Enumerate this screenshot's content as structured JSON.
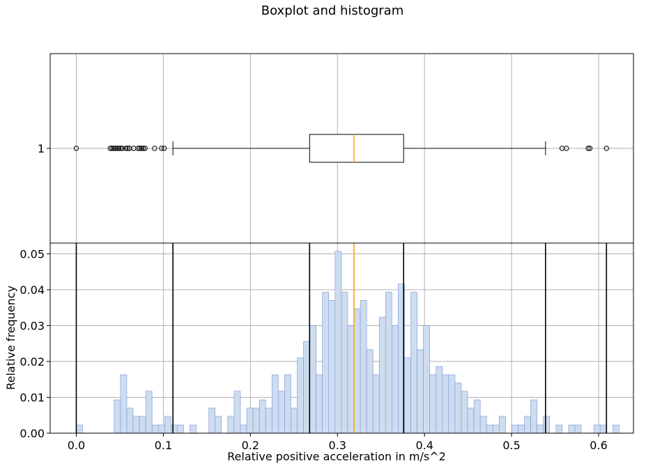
{
  "chart_data": {
    "title": "Boxplot and histogram",
    "boxplot": {
      "type": "boxplot",
      "orientation": "horizontal",
      "category_label": "1",
      "whisker_low": 0.111,
      "q1": 0.268,
      "median": 0.319,
      "q3": 0.376,
      "whisker_high": 0.539,
      "outliers": [
        0.0,
        0.039,
        0.041,
        0.043,
        0.045,
        0.047,
        0.049,
        0.051,
        0.053,
        0.057,
        0.059,
        0.061,
        0.066,
        0.071,
        0.073,
        0.075,
        0.077,
        0.079,
        0.09,
        0.098,
        0.101,
        0.558,
        0.563,
        0.588,
        0.59,
        0.609
      ],
      "grid": true
    },
    "histogram": {
      "type": "bar",
      "bin_width": 0.00725,
      "bin_start": 0.0,
      "values": [
        0.0023,
        0,
        0,
        0,
        0,
        0,
        0.0093,
        0.0163,
        0.007,
        0.0047,
        0.0047,
        0.0117,
        0.0023,
        0.0023,
        0.0047,
        0.0023,
        0.0023,
        0,
        0.0023,
        0,
        0,
        0.007,
        0.0047,
        0,
        0.0047,
        0.0117,
        0.0023,
        0.007,
        0.007,
        0.0093,
        0.007,
        0.0163,
        0.0117,
        0.0163,
        0.007,
        0.021,
        0.0256,
        0.03,
        0.0163,
        0.0393,
        0.037,
        0.0507,
        0.0393,
        0.03,
        0.0347,
        0.037,
        0.0233,
        0.0163,
        0.0323,
        0.0393,
        0.03,
        0.0416,
        0.021,
        0.0393,
        0.0233,
        0.03,
        0.0163,
        0.0186,
        0.0163,
        0.0163,
        0.014,
        0.0117,
        0.007,
        0.0093,
        0.0047,
        0.0023,
        0.0023,
        0.0047,
        0,
        0.0023,
        0.0023,
        0.0047,
        0.0093,
        0.0023,
        0.0047,
        0,
        0.0023,
        0,
        0.0023,
        0.0023,
        0,
        0,
        0.0023,
        0.0023,
        0,
        0.0023
      ],
      "reference_lines": [
        0.0,
        0.111,
        0.268,
        0.376,
        0.539,
        0.609
      ],
      "median_line": 0.319,
      "xlabel": "Relative positive acceleration in m/s^2",
      "ylabel": "Relative frequency",
      "xlim": [
        -0.03,
        0.64
      ],
      "ylim": [
        0,
        0.053
      ],
      "xticks": [
        0.0,
        0.1,
        0.2,
        0.3,
        0.4,
        0.5,
        0.6
      ],
      "xtick_labels": [
        "0.0",
        "0.1",
        "0.2",
        "0.3",
        "0.4",
        "0.5",
        "0.6"
      ],
      "yticks": [
        0.0,
        0.01,
        0.02,
        0.03,
        0.04,
        0.05
      ],
      "ytick_labels": [
        "0.00",
        "0.01",
        "0.02",
        "0.03",
        "0.04",
        "0.05"
      ],
      "grid": true
    },
    "colors": {
      "bar_fill": "#cddcef",
      "bar_edge": "#7a93d6",
      "median": "#ff9f1a",
      "grid": "#b0b0b0",
      "line": "#000000"
    }
  }
}
